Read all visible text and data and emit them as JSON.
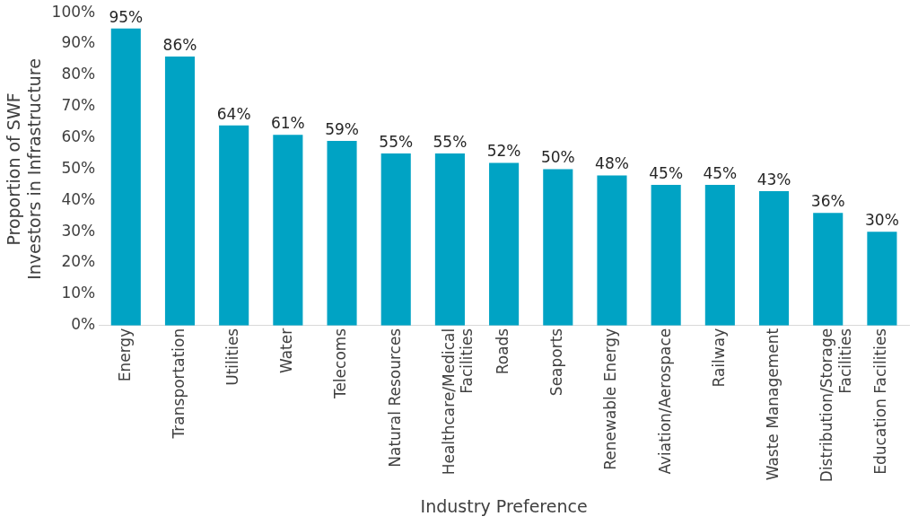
{
  "chart_data": {
    "type": "bar",
    "xlabel": "Industry Preference",
    "ylabel": "Proportion of SWF Investors in Infrastructure",
    "categories": [
      "Energy",
      "Transportation",
      "Utilities",
      "Water",
      "Telecoms",
      "Natural Resources",
      "Healthcare/Medical Facilities",
      "Roads",
      "Seaports",
      "Renewable Energy",
      "Aviation/Aerospace",
      "Railway",
      "Waste Management",
      "Distribution/Storage Facilities",
      "Education Facilities"
    ],
    "values": [
      95,
      86,
      64,
      61,
      59,
      55,
      55,
      52,
      50,
      48,
      45,
      45,
      43,
      36,
      30
    ],
    "value_labels": [
      "95%",
      "86%",
      "64%",
      "61%",
      "59%",
      "55%",
      "55%",
      "52%",
      "50%",
      "48%",
      "45%",
      "45%",
      "43%",
      "36%",
      "30%"
    ],
    "color": "#00a3c4",
    "ylim": [
      0,
      100
    ],
    "yticks": [
      {
        "value": 0,
        "label": "0%"
      },
      {
        "value": 10,
        "label": "10%"
      },
      {
        "value": 20,
        "label": "20%"
      },
      {
        "value": 30,
        "label": "30%"
      },
      {
        "value": 40,
        "label": "40%"
      },
      {
        "value": 50,
        "label": "50%"
      },
      {
        "value": 60,
        "label": "60%"
      },
      {
        "value": 70,
        "label": "70%"
      },
      {
        "value": 80,
        "label": "80%"
      },
      {
        "value": 90,
        "label": "90%"
      },
      {
        "value": 100,
        "label": "100%"
      }
    ],
    "grid": false,
    "legend": false
  }
}
